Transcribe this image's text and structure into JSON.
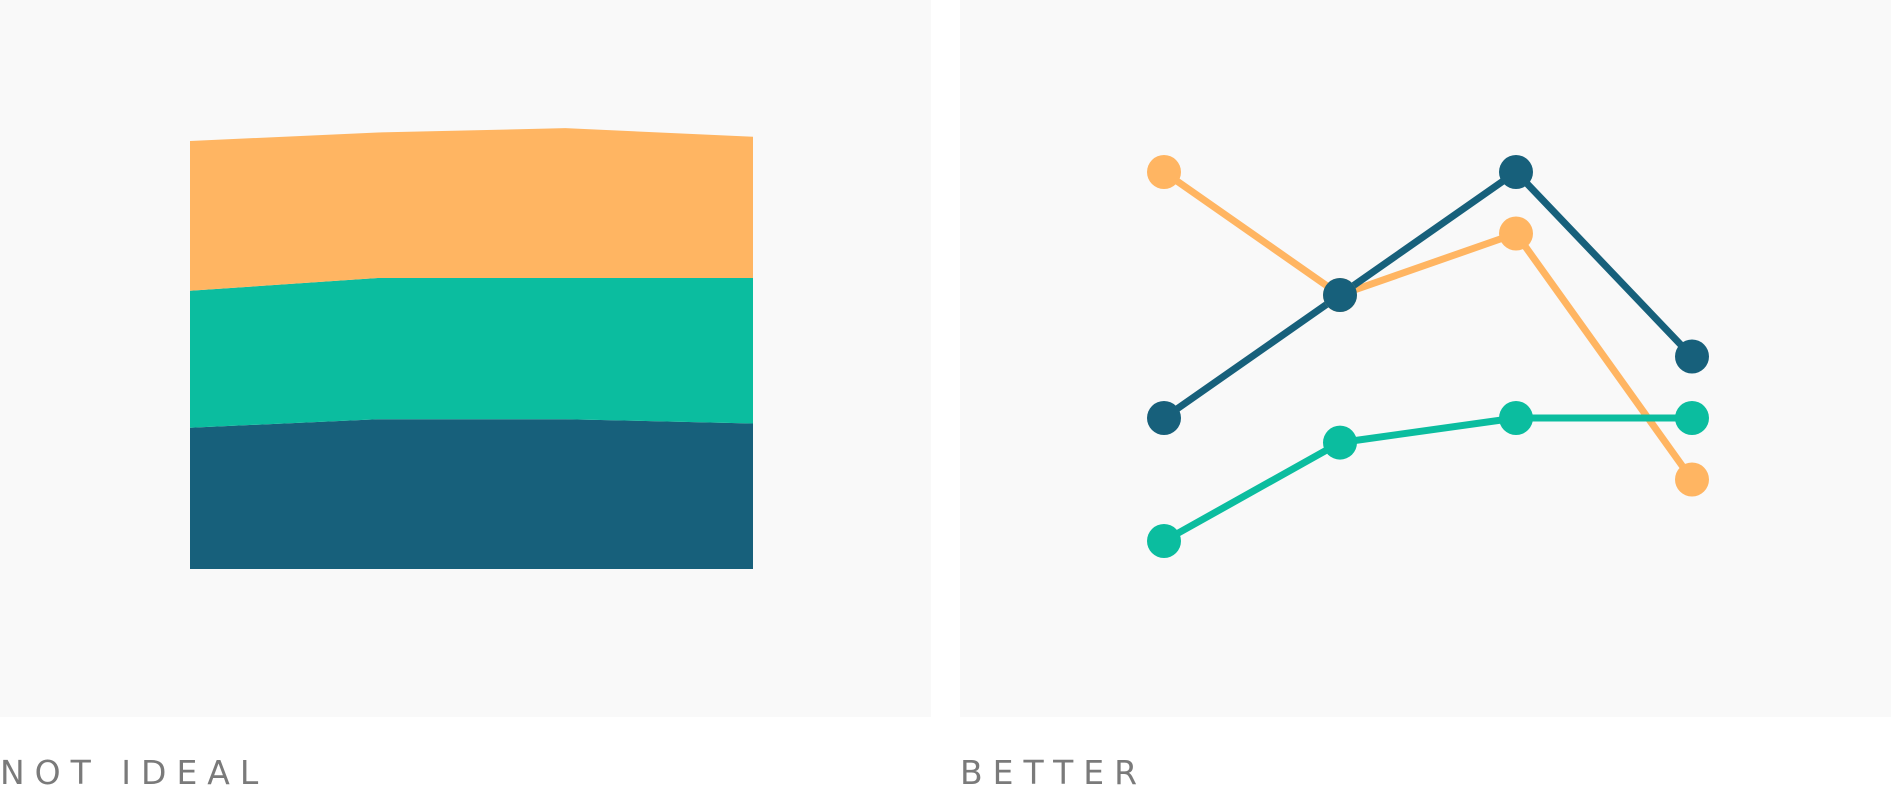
{
  "captions": {
    "left": "NOT IDEAL",
    "right": "BETTER"
  },
  "colors": {
    "orange": "#ffb562",
    "teal": "#0bbd9f",
    "navy": "#17607b",
    "panel_background": "#f9f9f9",
    "caption_text": "#7a7a7a"
  },
  "chart_data": [
    {
      "type": "area",
      "stacked": true,
      "title": "",
      "xlabel": "",
      "ylabel": "",
      "x": [
        1,
        2,
        3,
        4
      ],
      "ylim": [
        0,
        100
      ],
      "grid": false,
      "legend": "none",
      "series": [
        {
          "color": "#17607b",
          "values": [
            33,
            35,
            35,
            34
          ]
        },
        {
          "color": "#0bbd9f",
          "values": [
            32,
            33,
            33,
            34
          ]
        },
        {
          "color": "#ffb562",
          "values": [
            35,
            34,
            35,
            33
          ]
        }
      ]
    },
    {
      "type": "line",
      "title": "",
      "xlabel": "",
      "ylabel": "",
      "x": [
        1,
        2,
        3,
        4
      ],
      "ylim": [
        31,
        36
      ],
      "grid": false,
      "legend": "none",
      "markers": true,
      "series": [
        {
          "color": "#ffb562",
          "values": [
            35,
            34,
            34.5,
            32.5
          ]
        },
        {
          "color": "#17607b",
          "values": [
            33,
            34,
            35,
            33.5
          ]
        },
        {
          "color": "#0bbd9f",
          "values": [
            32,
            32.8,
            33,
            33
          ]
        }
      ]
    }
  ]
}
